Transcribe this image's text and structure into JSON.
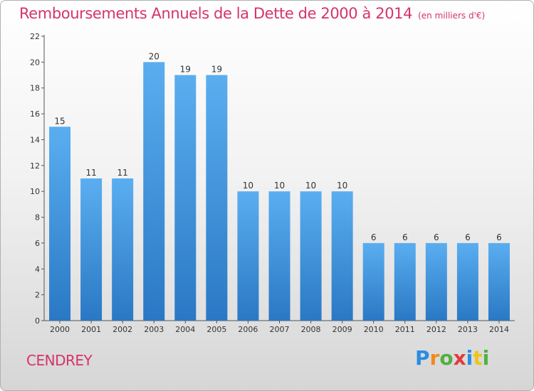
{
  "header": {
    "title": "Remboursements Annuels de la Dette de 2000 à 2014",
    "subtitle": "(en milliers d'€)"
  },
  "footer": {
    "commune": "CENDREY",
    "logo_text": "Proxiti"
  },
  "colors": {
    "title": "#d6336c",
    "bar_top": "#5aaef0",
    "bar_bottom": "#2a78c4"
  },
  "chart_data": {
    "type": "bar",
    "title": "Remboursements Annuels de la Dette de 2000 à 2014",
    "subtitle": "(en milliers d'€)",
    "categories": [
      "2000",
      "2001",
      "2002",
      "2003",
      "2004",
      "2005",
      "2006",
      "2007",
      "2008",
      "2009",
      "2010",
      "2011",
      "2012",
      "2013",
      "2014"
    ],
    "values": [
      15,
      11,
      11,
      20,
      19,
      19,
      10,
      10,
      10,
      10,
      6,
      6,
      6,
      6,
      6
    ],
    "yticks": [
      0,
      2,
      4,
      6,
      8,
      10,
      12,
      14,
      16,
      18,
      20,
      22
    ],
    "ylim": [
      0,
      22
    ],
    "grid": false,
    "data_labels": true
  }
}
